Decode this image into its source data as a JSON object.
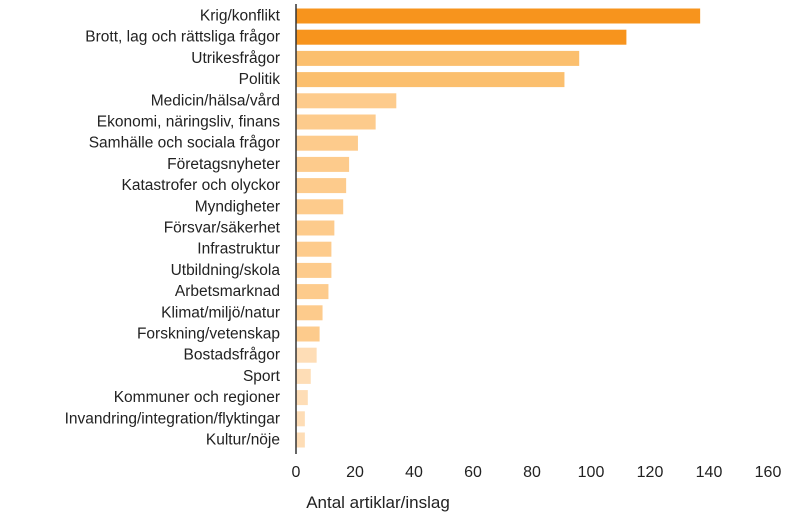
{
  "chart_data": {
    "type": "bar",
    "orientation": "horizontal",
    "title": "",
    "xlabel": "Antal artiklar/inslag",
    "ylabel": "",
    "xlim": [
      0,
      160
    ],
    "x_ticks": [
      0,
      20,
      40,
      60,
      80,
      100,
      120,
      140,
      160
    ],
    "grid": false,
    "categories": [
      "Krig/konflikt",
      "Brott, lag och rättsliga frågor",
      "Utrikesfrågor",
      "Politik",
      "Medicin/hälsa/vård",
      "Ekonomi, näringsliv, finans",
      "Samhälle och sociala frågor",
      "Företagsnyheter",
      "Katastrofer och olyckor",
      "Myndigheter",
      "Försvar/säkerhet",
      "Infrastruktur",
      "Utbildning/skola",
      "Arbetsmarknad",
      "Klimat/miljö/natur",
      "Forskning/vetenskap",
      "Bostadsfrågor",
      "Sport",
      "Kommuner och regioner",
      "Invandring/integration/flyktingar",
      "Kultur/nöje"
    ],
    "values": [
      137,
      112,
      96,
      91,
      34,
      27,
      21,
      18,
      17,
      16,
      13,
      12,
      12,
      11,
      9,
      8,
      7,
      5,
      4,
      3,
      3
    ],
    "colors": [
      "#F7941D",
      "#F7941D",
      "#FBBF6E",
      "#FBBF6E",
      "#FDCB8C",
      "#FDCB8C",
      "#FDCB8C",
      "#FDCB8C",
      "#FDCB8C",
      "#FDCB8C",
      "#FDCB8C",
      "#FDCB8C",
      "#FDCB8C",
      "#FDCB8C",
      "#FDCB8C",
      "#FDCB8C",
      "#FEDDB6",
      "#FEDDB6",
      "#FEDDB6",
      "#FEDDB6",
      "#FEDDB6"
    ],
    "axis_color": "#333333"
  }
}
